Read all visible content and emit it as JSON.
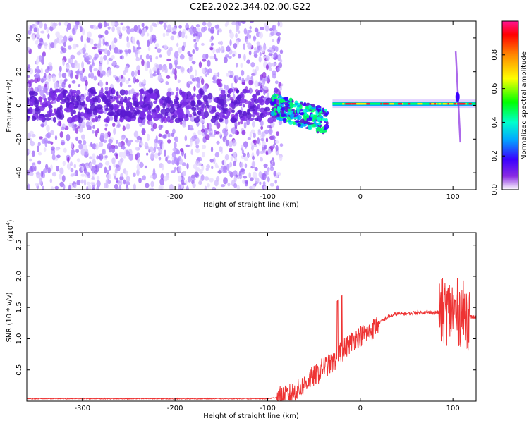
{
  "title": "C2E2.2022.344.02.00.G22",
  "chart_data": [
    {
      "type": "heatmap",
      "xlabel": "Height of straight line (km)",
      "ylabel": "Frequency (Hz)",
      "xlim": [
        -360,
        125
      ],
      "ylim": [
        -50,
        50
      ],
      "xticks": [
        -300,
        -200,
        -100,
        0,
        100
      ],
      "yticks": [
        -40,
        -20,
        0,
        20,
        40
      ],
      "colorbar": {
        "label": "Normalized spectral amplitude",
        "range": [
          0.0,
          1.0
        ],
        "ticks": [
          0.0,
          0.2,
          0.4,
          0.6,
          0.8
        ],
        "colormap": [
          "#ffffff",
          "#8a2be2",
          "#3a00ff",
          "#00aaff",
          "#00ffcc",
          "#00ff00",
          "#ffff00",
          "#ff8800",
          "#ff0000",
          "#ff1493"
        ]
      },
      "features": {
        "noise_region_x": [
          -360,
          -85
        ],
        "carrier_band_x": [
          -85,
          125
        ],
        "carrier_frequency_hz": 1,
        "spike_x": 105,
        "spike_freq_range": [
          -22,
          32
        ]
      }
    },
    {
      "type": "line",
      "xlabel": "Height of straight line (km)",
      "ylabel": "SNR (10 * v/v)",
      "yscale_label": "(x10",
      "yscale_exp": "4",
      "xlim": [
        -360,
        125
      ],
      "ylim": [
        0,
        2.7
      ],
      "xticks": [
        -300,
        -200,
        -100,
        0,
        100
      ],
      "yticks": [
        0.5,
        1.0,
        1.5,
        2.0,
        2.5
      ],
      "color": "#ee3333",
      "profile": {
        "x": [
          -360,
          -100,
          -80,
          -65,
          -55,
          -45,
          -40,
          -30,
          -20,
          -10,
          0,
          10,
          20,
          30,
          40,
          50,
          60,
          70,
          80,
          90,
          100,
          110,
          118,
          125
        ],
        "y": [
          0.04,
          0.04,
          0.08,
          0.2,
          0.35,
          0.45,
          0.55,
          0.6,
          0.8,
          0.95,
          1.05,
          1.1,
          1.25,
          1.35,
          1.4,
          1.4,
          1.42,
          1.42,
          1.42,
          1.43,
          1.45,
          1.4,
          1.35,
          1.35
        ]
      }
    }
  ]
}
